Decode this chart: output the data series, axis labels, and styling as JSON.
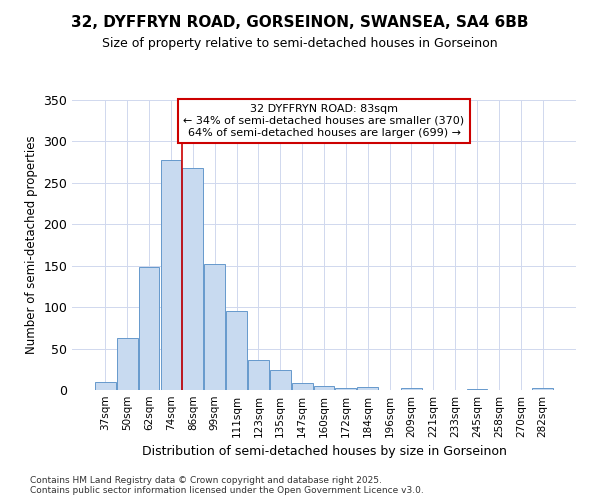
{
  "title_line1": "32, DYFFRYN ROAD, GORSEINON, SWANSEA, SA4 6BB",
  "title_line2": "Size of property relative to semi-detached houses in Gorseinon",
  "xlabel": "Distribution of semi-detached houses by size in Gorseinon",
  "ylabel": "Number of semi-detached properties",
  "categories": [
    "37sqm",
    "50sqm",
    "62sqm",
    "74sqm",
    "86sqm",
    "99sqm",
    "111sqm",
    "123sqm",
    "135sqm",
    "147sqm",
    "160sqm",
    "172sqm",
    "184sqm",
    "196sqm",
    "209sqm",
    "221sqm",
    "233sqm",
    "245sqm",
    "258sqm",
    "270sqm",
    "282sqm"
  ],
  "values": [
    10,
    63,
    148,
    278,
    268,
    152,
    95,
    36,
    24,
    9,
    5,
    3,
    4,
    0,
    2,
    0,
    0,
    1,
    0,
    0,
    2
  ],
  "bar_color": "#c8daf0",
  "bar_edge_color": "#6699cc",
  "grid_color": "#d0d8ee",
  "bg_color": "#ffffff",
  "annotation_box_color": "#ffffff",
  "annotation_border_color": "#cc0000",
  "vline_color": "#cc0000",
  "vline_x_index": 4.0,
  "annotation_text_line1": "32 DYFFRYN ROAD: 83sqm",
  "annotation_text_line2": "← 34% of semi-detached houses are smaller (370)",
  "annotation_text_line3": "64% of semi-detached houses are larger (699) →",
  "footer_line1": "Contains HM Land Registry data © Crown copyright and database right 2025.",
  "footer_line2": "Contains public sector information licensed under the Open Government Licence v3.0.",
  "ylim": [
    0,
    350
  ],
  "yticks": [
    0,
    50,
    100,
    150,
    200,
    250,
    300,
    350
  ],
  "figsize": [
    6.0,
    5.0
  ],
  "dpi": 100
}
